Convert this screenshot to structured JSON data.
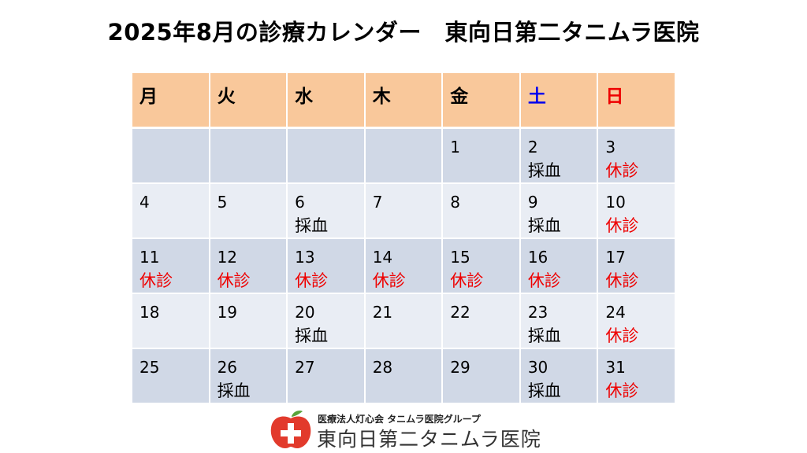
{
  "title": "2025年8月の診療カレンダー　東向日第二タニムラ医院",
  "weekdays": [
    "月",
    "火",
    "水",
    "木",
    "金",
    "土",
    "日"
  ],
  "weeks": [
    [
      {
        "day": "",
        "note": ""
      },
      {
        "day": "",
        "note": ""
      },
      {
        "day": "",
        "note": ""
      },
      {
        "day": "",
        "note": ""
      },
      {
        "day": "1",
        "note": ""
      },
      {
        "day": "2",
        "note": "採血"
      },
      {
        "day": "3",
        "note": "休診"
      }
    ],
    [
      {
        "day": "4",
        "note": ""
      },
      {
        "day": "5",
        "note": ""
      },
      {
        "day": "6",
        "note": "採血"
      },
      {
        "day": "7",
        "note": ""
      },
      {
        "day": "8",
        "note": ""
      },
      {
        "day": "9",
        "note": "採血"
      },
      {
        "day": "10",
        "note": "休診"
      }
    ],
    [
      {
        "day": "11",
        "note": "休診"
      },
      {
        "day": "12",
        "note": "休診"
      },
      {
        "day": "13",
        "note": "休診"
      },
      {
        "day": "14",
        "note": "休診"
      },
      {
        "day": "15",
        "note": "休診"
      },
      {
        "day": "16",
        "note": "休診"
      },
      {
        "day": "17",
        "note": "休診"
      }
    ],
    [
      {
        "day": "18",
        "note": ""
      },
      {
        "day": "19",
        "note": ""
      },
      {
        "day": "20",
        "note": "採血"
      },
      {
        "day": "21",
        "note": ""
      },
      {
        "day": "22",
        "note": ""
      },
      {
        "day": "23",
        "note": "採血"
      },
      {
        "day": "24",
        "note": "休診"
      }
    ],
    [
      {
        "day": "25",
        "note": ""
      },
      {
        "day": "26",
        "note": "採血"
      },
      {
        "day": "27",
        "note": ""
      },
      {
        "day": "28",
        "note": ""
      },
      {
        "day": "29",
        "note": ""
      },
      {
        "day": "30",
        "note": "採血"
      },
      {
        "day": "31",
        "note": "休診"
      }
    ]
  ],
  "colors": {
    "header_bg": "#f9c89b",
    "row_dark": "#d0d8e6",
    "row_light": "#e9edf4",
    "saturday": "#0000ee",
    "sunday_closed": "#ee0000",
    "logo_red": "#e23a2c",
    "logo_green": "#5aa33a"
  },
  "logo": {
    "group_text": "医療法人灯心会 タニムラ医院グループ",
    "clinic_name": "東向日第二タニムラ医院",
    "icon": "apple-cross-icon"
  }
}
